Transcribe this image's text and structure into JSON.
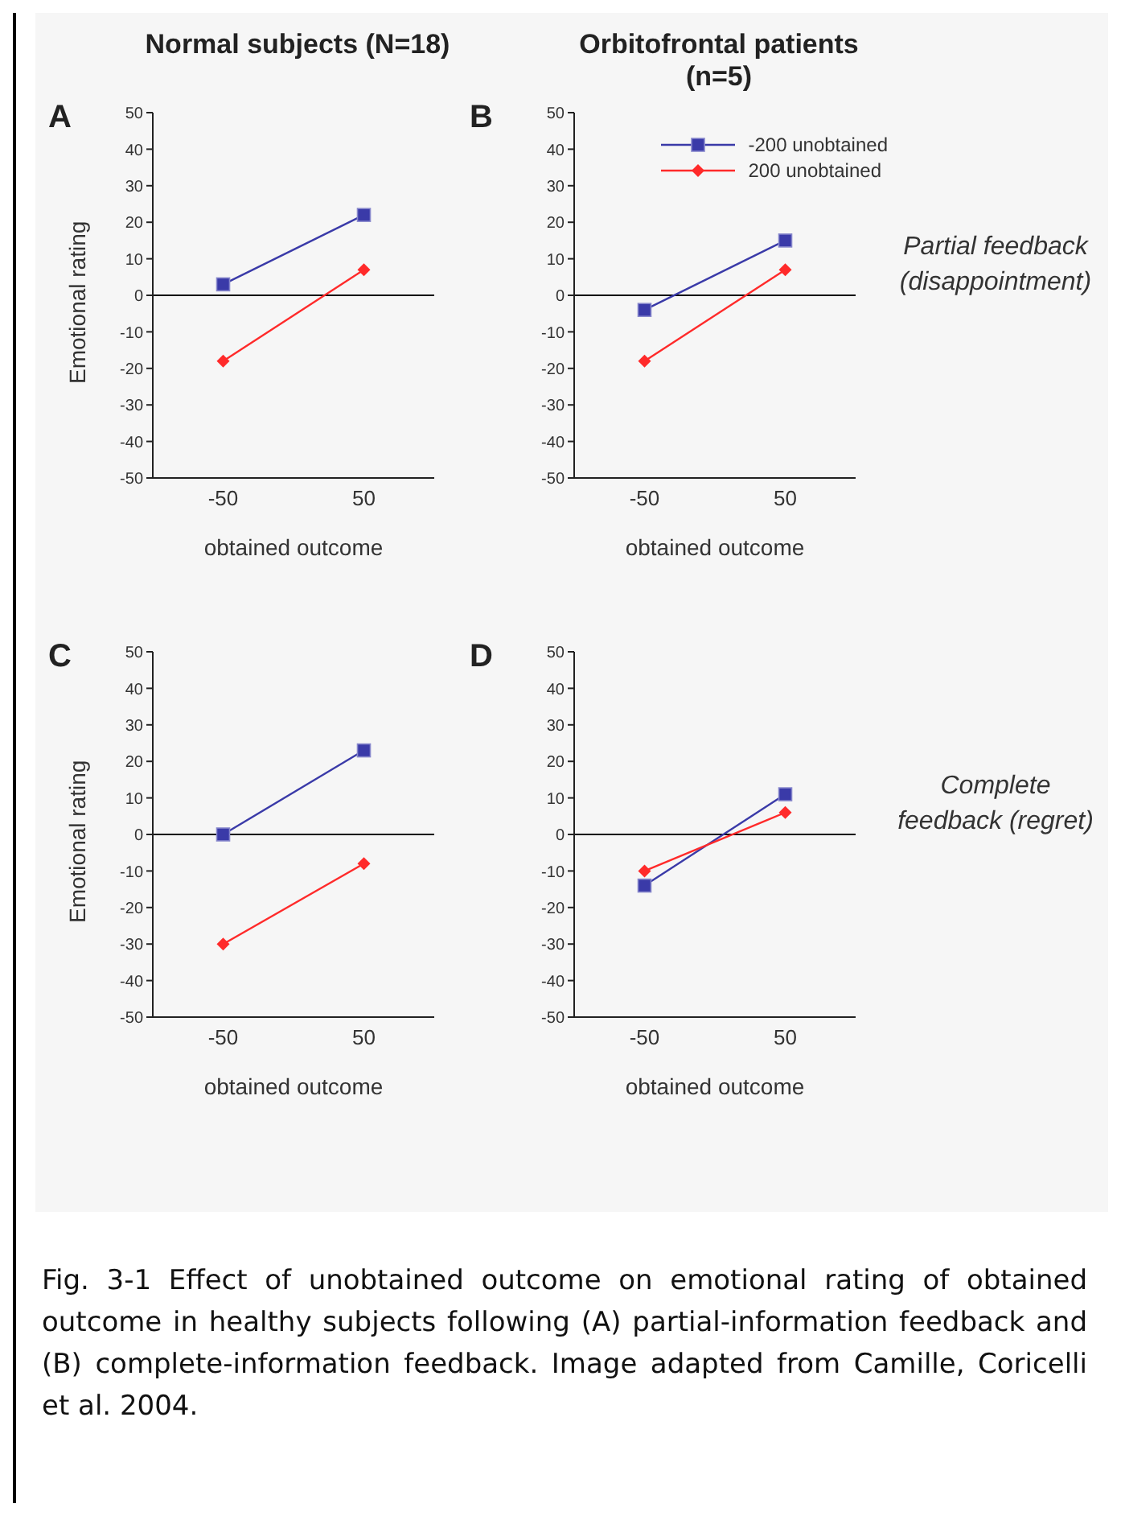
{
  "chart_data": [
    {
      "type": "line",
      "title": "Normal subjects (N=18)",
      "subtitle": "A",
      "xlabel": "obtained outcome",
      "ylabel": "Emotional rating",
      "categories": [
        "-50",
        "50"
      ],
      "series": [
        {
          "color": "#3a3aa8",
          "marker": "square",
          "values": [
            3,
            22
          ]
        },
        {
          "color": "#ff2a2a",
          "marker": "diamond",
          "values": [
            -18,
            7
          ]
        }
      ],
      "ylim": [
        -50,
        50
      ],
      "yticks": [
        -50,
        -40,
        -30,
        -20,
        -10,
        0,
        10,
        20,
        30,
        40,
        50
      ],
      "ref_lines": [
        {
          "axis": "y",
          "value": 0,
          "color": "#000000"
        }
      ],
      "grid": false,
      "legend": false
    },
    {
      "type": "line",
      "title": "Orbitofrontal patients (n=5)",
      "subtitle": "B",
      "xlabel": "obtained outcome",
      "categories": [
        "-50",
        "50"
      ],
      "series": [
        {
          "name": "-200 unobtained",
          "color": "#3a3aa8",
          "marker": "square",
          "values": [
            -4,
            15
          ]
        },
        {
          "name": "200 unobtained",
          "color": "#ff2a2a",
          "marker": "diamond",
          "values": [
            -18,
            7
          ]
        }
      ],
      "ylim": [
        -50,
        50
      ],
      "yticks": [
        -50,
        -40,
        -30,
        -20,
        -10,
        0,
        10,
        20,
        30,
        40,
        50
      ],
      "ref_lines": [
        {
          "axis": "y",
          "value": 0,
          "color": "#000000"
        }
      ],
      "grid": false,
      "legend": "top right",
      "annotations": [
        "Partial feedback (disappointment)"
      ]
    },
    {
      "type": "line",
      "subtitle": "C",
      "xlabel": "obtained outcome",
      "ylabel": "Emotional rating",
      "categories": [
        "-50",
        "50"
      ],
      "series": [
        {
          "color": "#3a3aa8",
          "marker": "square",
          "values": [
            0,
            23
          ]
        },
        {
          "color": "#ff2a2a",
          "marker": "diamond",
          "values": [
            -30,
            -8
          ]
        }
      ],
      "ylim": [
        -50,
        50
      ],
      "yticks": [
        -50,
        -40,
        -30,
        -20,
        -10,
        0,
        10,
        20,
        30,
        40,
        50
      ],
      "ref_lines": [
        {
          "axis": "y",
          "value": 0,
          "color": "#000000"
        }
      ],
      "grid": false,
      "legend": false
    },
    {
      "type": "line",
      "subtitle": "D",
      "xlabel": "obtained outcome",
      "categories": [
        "-50",
        "50"
      ],
      "series": [
        {
          "color": "#3a3aa8",
          "marker": "square",
          "values": [
            -14,
            11
          ]
        },
        {
          "color": "#ff2a2a",
          "marker": "diamond",
          "values": [
            -10,
            6
          ]
        }
      ],
      "ylim": [
        -50,
        50
      ],
      "yticks": [
        -50,
        -40,
        -30,
        -20,
        -10,
        0,
        10,
        20,
        30,
        40,
        50
      ],
      "ref_lines": [
        {
          "axis": "y",
          "value": 0,
          "color": "#000000"
        }
      ],
      "grid": false,
      "legend": false,
      "annotations": [
        "Complete feedback (regret)",
        "Fig. 3-1 Effect of unobtained outcome on emotional rating of obtained outcome in healthy subjects following (A) partial-information feedback and (B) complete-information feedback. Image adapted from Camille, Coricelli et al. 2004."
      ]
    }
  ]
}
